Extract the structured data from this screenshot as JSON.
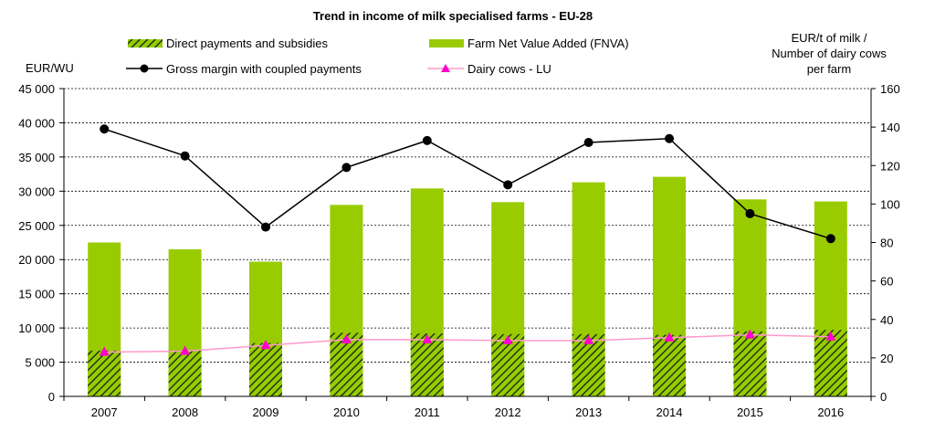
{
  "chart_data": {
    "type": "bar",
    "title": "Trend in income of milk specialised  farms - EU-28",
    "y_left_label": "EUR/WU",
    "y_right_label_lines": [
      "EUR/t of milk /",
      "Number  of dairy cows",
      "per farm"
    ],
    "categories": [
      "2007",
      "2008",
      "2009",
      "2010",
      "2011",
      "2012",
      "2013",
      "2014",
      "2015",
      "2016"
    ],
    "y_left": {
      "min": 0,
      "max": 45000,
      "step": 5000,
      "tick_labels": [
        "0",
        "5 000",
        "10 000",
        "15 000",
        "20 000",
        "25 000",
        "30 000",
        "35 000",
        "40 000",
        "45 000"
      ]
    },
    "y_right": {
      "min": 0,
      "max": 160,
      "step": 20,
      "tick_labels": [
        "0",
        "20",
        "40",
        "60",
        "80",
        "100",
        "120",
        "140",
        "160"
      ]
    },
    "grid": true,
    "legend_position": "top",
    "series": [
      {
        "name": "Farm Net Value Added (FNVA)",
        "type": "bar",
        "axis": "left",
        "color": "#99cc00",
        "values": [
          22500,
          21500,
          19700,
          28000,
          30400,
          28400,
          31300,
          32100,
          28800,
          28500
        ]
      },
      {
        "name": "Direct payments and subsidies",
        "type": "bar-hatched",
        "axis": "left",
        "color": "#99cc00",
        "hatch_color": "#1e3a14",
        "values": [
          6700,
          6700,
          7800,
          9300,
          9200,
          9100,
          9100,
          9000,
          9500,
          9700
        ]
      },
      {
        "name": "Gross margin with coupled payments",
        "type": "line",
        "axis": "right",
        "color": "#000000",
        "marker": "circle",
        "values": [
          139,
          125,
          88,
          119,
          133,
          110,
          132,
          134,
          95,
          82
        ]
      },
      {
        "name": "Dairy cows - LU",
        "type": "line",
        "axis": "right",
        "color": "#ff99cc",
        "marker": "triangle",
        "marker_color": "#ff00cc",
        "values": [
          23,
          23.5,
          26.5,
          29.5,
          29.5,
          29,
          29,
          30.5,
          32,
          31
        ]
      }
    ]
  }
}
